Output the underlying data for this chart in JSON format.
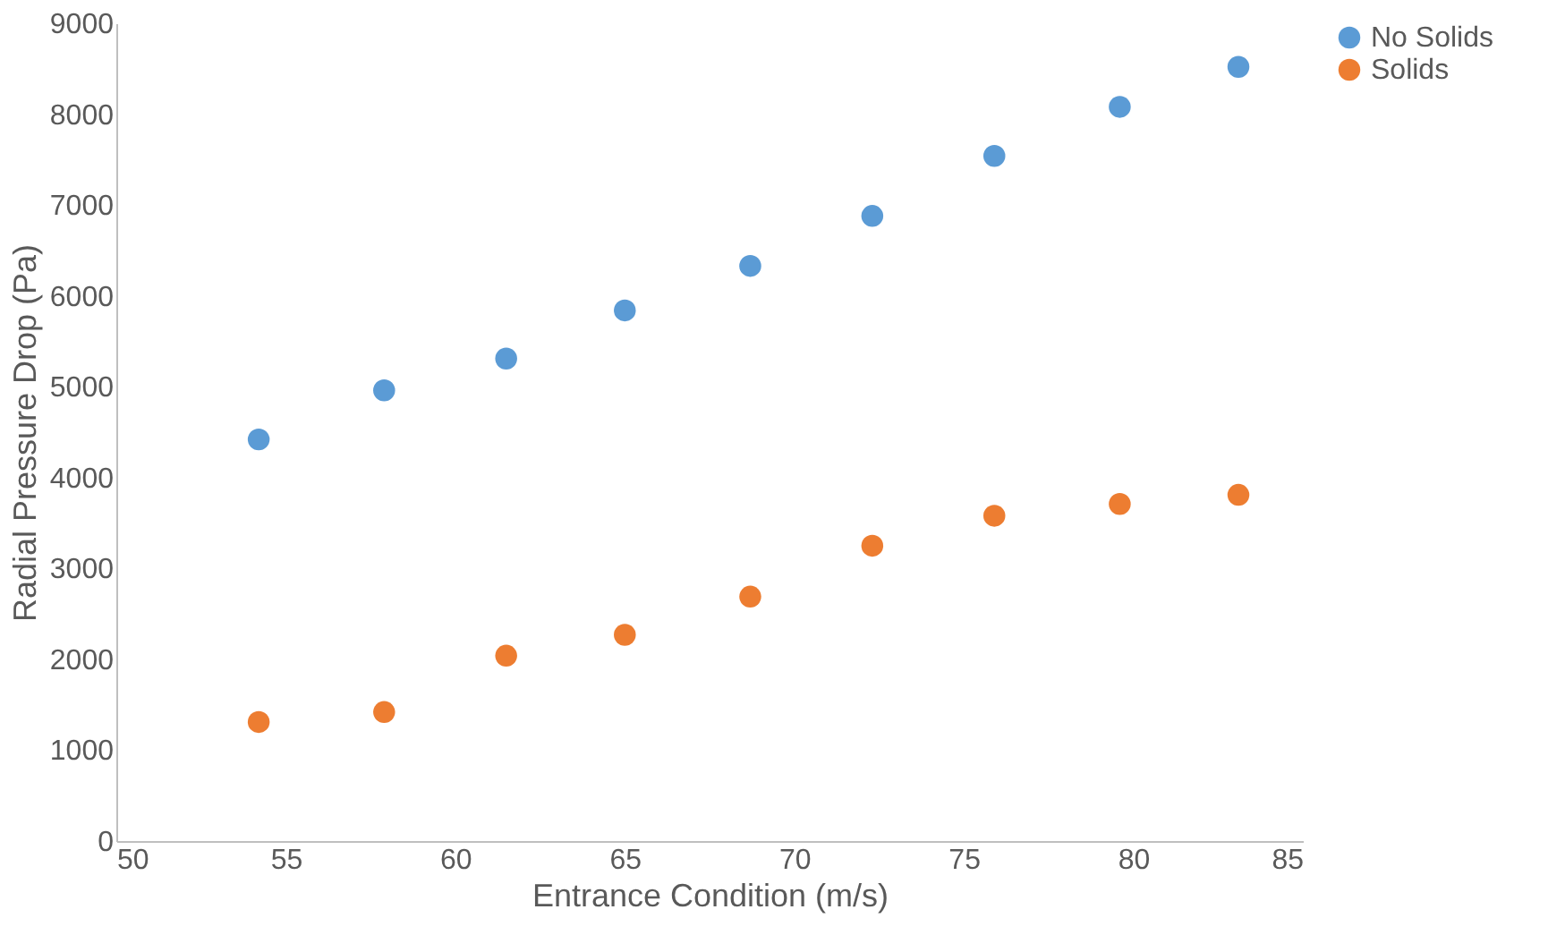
{
  "chart_data": {
    "type": "scatter",
    "xlabel": "Entrance Condition (m/s)",
    "ylabel": "Radial Pressure Drop (Pa)",
    "x": [
      54.2,
      57.9,
      61.5,
      65.0,
      68.7,
      72.3,
      75.9,
      79.6,
      83.1
    ],
    "series": [
      {
        "name": "No Solids",
        "color": "#5b9bd5",
        "values": [
          4420,
          4960,
          5310,
          5840,
          6330,
          6880,
          7540,
          8080,
          8520
        ]
      },
      {
        "name": "Solids",
        "color": "#ed7d31",
        "values": [
          1310,
          1420,
          2040,
          2270,
          2690,
          3250,
          3580,
          3710,
          3810
        ]
      }
    ],
    "xlim": [
      50,
      85
    ],
    "xticks": [
      50,
      55,
      60,
      65,
      70,
      75,
      80,
      85
    ],
    "ylim": [
      0,
      9000
    ],
    "yticks": [
      0,
      1000,
      2000,
      3000,
      4000,
      5000,
      6000,
      7000,
      8000,
      9000
    ],
    "grid": false,
    "legend": "right",
    "marker": "circle"
  }
}
